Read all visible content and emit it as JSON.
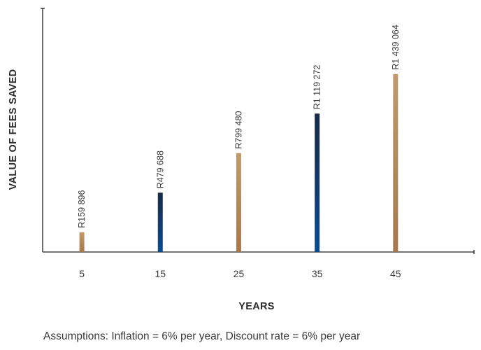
{
  "chart_data": {
    "type": "bar",
    "categories": [
      "5",
      "15",
      "25",
      "35",
      "45"
    ],
    "values": [
      159896,
      479688,
      799480,
      1119272,
      1439064
    ],
    "value_labels": [
      "R159 896",
      "R479 688",
      "R799 480",
      "R1 119 272",
      "R1 439 064"
    ],
    "xlabel": "YEARS",
    "ylabel": "VALUE OF FEES SAVED",
    "xlim": [
      0,
      55
    ],
    "ylim": [
      0,
      1970000
    ],
    "grid": false,
    "colors": {
      "gold_top": "#c19a6b",
      "gold_bottom": "#a7784a",
      "navy_top": "#1a2a45",
      "navy_bottom": "#0a4a8f"
    },
    "bar_color_pattern": [
      "gold",
      "navy",
      "gold",
      "navy",
      "gold"
    ]
  },
  "footnote": "Assumptions: Inflation = 6% per year, Discount rate = 6% per year"
}
